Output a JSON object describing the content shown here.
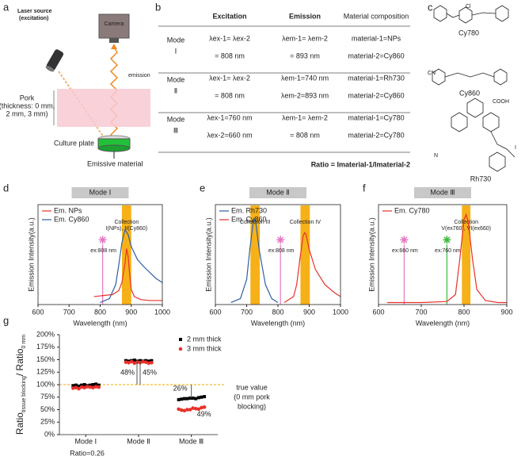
{
  "panel_labels": [
    "a",
    "b",
    "c",
    "d",
    "e",
    "f",
    "g"
  ],
  "schematic": {
    "laser": [
      "Laser source",
      "(excitation)"
    ],
    "camera": "Camera",
    "emission": "emission",
    "pork": [
      "Pork",
      "(thickness: 0 mm,",
      "2 mm, 3 mm)"
    ],
    "plate": "Culture plate",
    "material": "Emissive material"
  },
  "table": {
    "headers": [
      "Excitation",
      "Emission",
      "Material composition"
    ],
    "rows": [
      {
        "mode": [
          "Mode",
          "Ⅰ"
        ],
        "excitation": [
          "λex-1= λex-2",
          "= 808 nm"
        ],
        "emission": [
          "λem-1= λem-2",
          "= 893 nm"
        ],
        "material": [
          "material-1=NPs",
          "material-2=Cy860"
        ]
      },
      {
        "mode": [
          "Mode",
          "Ⅱ"
        ],
        "excitation": [
          "λex-1= λex-2",
          "= 808 nm"
        ],
        "emission": [
          "λem-1=740 nm",
          "λem-2=893 nm"
        ],
        "material": [
          "material-1=Rh730",
          "material-2=Cy860"
        ]
      },
      {
        "mode": [
          "Mode",
          "Ⅲ"
        ],
        "excitation": [
          "λex-1=760 nm",
          "λex-2=660 nm"
        ],
        "emission": [
          "λem-1= λem-2",
          "= 808 nm"
        ],
        "material": [
          "material-1=Cy780",
          "material-2=Cy780"
        ]
      }
    ],
    "footnote": "Ratio = Imaterial-1/Imaterial-2"
  },
  "structures": {
    "names": [
      "Cy780",
      "Cy860",
      "Rh730"
    ],
    "atoms": [
      "Cl",
      "N",
      "CN",
      "COOH",
      "I"
    ]
  },
  "chart_data": [
    {
      "type": "line",
      "title": "Mode Ⅰ",
      "xlabel": "Wavelength (nm)",
      "ylabel": "Emission Intensity(a.u.)",
      "xlim": [
        600,
        1000
      ],
      "xticks": [
        600,
        700,
        800,
        900,
        1000
      ],
      "ylim": [
        0,
        1
      ],
      "legend": "upper left",
      "series": [
        {
          "name": "Em. NPs",
          "color": "#e8312a",
          "x": [
            780,
            840,
            860,
            870,
            880,
            885,
            890,
            895,
            900,
            910,
            930,
            960,
            1000
          ],
          "values": [
            0.08,
            0.1,
            0.14,
            0.22,
            0.42,
            0.56,
            0.48,
            0.3,
            0.15,
            0.08,
            0.05,
            0.04,
            0.04
          ]
        },
        {
          "name": "Em. Cy860",
          "color": "#2f5fa5",
          "x": [
            800,
            830,
            850,
            860,
            870,
            880,
            890,
            900,
            920,
            940,
            960,
            980,
            1000
          ],
          "values": [
            0.02,
            0.06,
            0.2,
            0.4,
            0.62,
            0.75,
            0.7,
            0.58,
            0.45,
            0.38,
            0.32,
            0.26,
            0.22
          ]
        }
      ],
      "bands": [
        {
          "range": [
            870,
            900
          ],
          "label": [
            "Collection",
            "I(NPs), II(Cy860)"
          ]
        }
      ],
      "excitations": [
        {
          "x": 808,
          "label": "ex:808 nm",
          "color": "#e377c2"
        }
      ]
    },
    {
      "type": "line",
      "title": "Mode Ⅱ",
      "xlabel": "Wavelength (nm)",
      "ylabel": "Emission Intensity(a.u.)",
      "xlim": [
        600,
        1000
      ],
      "xticks": [
        600,
        700,
        800,
        900,
        1000
      ],
      "ylim": [
        0,
        1
      ],
      "legend": "upper left",
      "series": [
        {
          "name": "Em. Rh730",
          "color": "#2f5fa5",
          "x": [
            650,
            680,
            700,
            710,
            720,
            725,
            730,
            740,
            760,
            780,
            800
          ],
          "values": [
            0.02,
            0.06,
            0.25,
            0.55,
            0.8,
            0.85,
            0.8,
            0.55,
            0.2,
            0.06,
            0.02
          ]
        },
        {
          "name": "Em. Cy860",
          "color": "#e8312a",
          "x": [
            820,
            850,
            860,
            870,
            880,
            885,
            890,
            900,
            920,
            950,
            980,
            1000
          ],
          "values": [
            0.02,
            0.08,
            0.2,
            0.45,
            0.68,
            0.72,
            0.7,
            0.55,
            0.35,
            0.2,
            0.12,
            0.08
          ]
        }
      ],
      "bands": [
        {
          "range": [
            712,
            742
          ],
          "label": [
            "Collection III"
          ]
        },
        {
          "range": [
            872,
            902
          ],
          "label": [
            "Collection IV"
          ]
        }
      ],
      "excitations": [
        {
          "x": 808,
          "label": "ex:808 nm",
          "color": "#e377c2"
        }
      ]
    },
    {
      "type": "line",
      "title": "Mode Ⅲ",
      "xlabel": "Wavelength (nm)",
      "ylabel": "Emission Intensity(a.u.)",
      "xlim": [
        600,
        900
      ],
      "xticks": [
        600,
        700,
        800,
        900
      ],
      "ylim": [
        0,
        1
      ],
      "legend": "upper left",
      "series": [
        {
          "name": "Em. Cy780",
          "color": "#e8312a",
          "x": [
            620,
            700,
            760,
            780,
            790,
            800,
            805,
            810,
            820,
            830,
            850,
            880,
            900
          ],
          "values": [
            0.02,
            0.02,
            0.03,
            0.1,
            0.45,
            0.85,
            0.9,
            0.82,
            0.45,
            0.15,
            0.04,
            0.02,
            0.02
          ]
        }
      ],
      "bands": [
        {
          "range": [
            795,
            815
          ],
          "label": [
            "Collection",
            "V(ex760), VI(ex660)"
          ]
        }
      ],
      "excitations": [
        {
          "x": 660,
          "label": "ex:660 nm",
          "color": "#e377c2"
        },
        {
          "x": 760,
          "label": "ex:760 nm",
          "color": "#3cb83c"
        }
      ]
    },
    {
      "type": "scatter",
      "ylabel": {
        "main": "Ratio",
        "sub": "tissue blocking",
        "main2": "/ Ratio",
        "sub2": "0 mm"
      },
      "categories": [
        "Mode Ⅰ",
        "Mode Ⅱ",
        "Mode Ⅲ"
      ],
      "ylim": [
        0,
        200
      ],
      "yticks": [
        {
          "value": 0,
          "label": "0%"
        },
        {
          "value": 25,
          "label": "25%"
        },
        {
          "value": 50,
          "label": "50%"
        },
        {
          "value": 75,
          "label": "75%"
        },
        {
          "value": 100,
          "label": "100%"
        },
        {
          "value": 125,
          "label": "125%"
        },
        {
          "value": 150,
          "label": "150%"
        },
        {
          "value": 175,
          "label": "175%"
        },
        {
          "value": 200,
          "label": "200%"
        }
      ],
      "legend": "upper right",
      "series": [
        {
          "name": "2 mm thick",
          "color": "#000000",
          "marker": "square",
          "values": [
            [
              98,
              99,
              97,
              99,
              100,
              98,
              99,
              100,
              101,
              99
            ],
            [
              148,
              147,
              148,
              149,
              147,
              148,
              147,
              148,
              147,
              148
            ],
            [
              70,
              71,
              72,
              72,
              73,
              73,
              72,
              74,
              75,
              76
            ]
          ]
        },
        {
          "name": "3 mm thick",
          "color": "#e8312a",
          "marker": "circle",
          "values": [
            [
              93,
              94,
              92,
              95,
              94,
              96,
              95,
              94,
              96,
              95
            ],
            [
              145,
              144,
              146,
              143,
              145,
              144,
              146,
              145,
              143,
              144
            ],
            [
              51,
              49,
              48,
              50,
              50,
              53,
              52,
              51,
              54,
              55
            ]
          ]
        }
      ],
      "reference": {
        "value": 100,
        "label": [
          "true value",
          "(0 mm pork",
          "blocking)"
        ]
      },
      "annotations": [
        "48%",
        "45%",
        "26%",
        "49%"
      ],
      "footnote": "Ratio=0.26"
    }
  ]
}
